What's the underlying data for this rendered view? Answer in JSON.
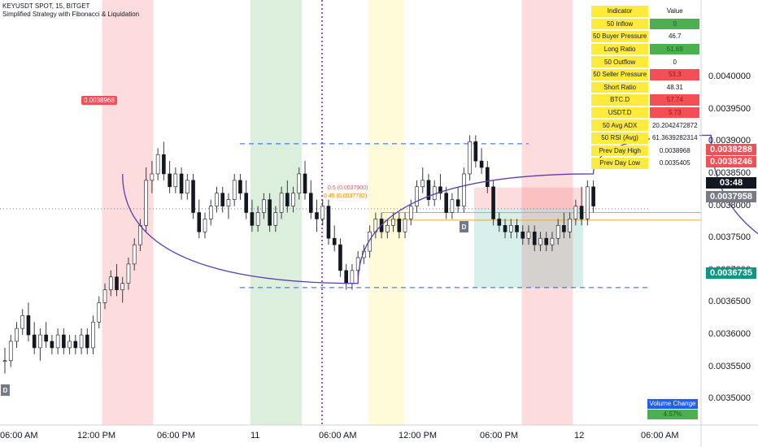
{
  "header": {
    "line1": "KEYUSDT SPOT, 15, BITGET",
    "line2": "Simplified Strategy with Fibonacci & Liquidation"
  },
  "table": {
    "header": [
      "Indicator",
      "Value"
    ],
    "rows": [
      {
        "label": "50 Inflow",
        "value": "0",
        "tone": "pos"
      },
      {
        "label": "50 Buyer Pressure",
        "value": "46.7",
        "tone": ""
      },
      {
        "label": "Long Ratio",
        "value": "51.69",
        "tone": "pos"
      },
      {
        "label": "50 Outflow",
        "value": "0",
        "tone": ""
      },
      {
        "label": "50 Seller Pressure",
        "value": "53.3",
        "tone": "neg"
      },
      {
        "label": "Short Ratio",
        "value": "48.31",
        "tone": ""
      },
      {
        "label": "BTC.D",
        "value": "57.74",
        "tone": "neg"
      },
      {
        "label": "USDT.D",
        "value": "5.73",
        "tone": "neg"
      },
      {
        "label": "50 Avg ADX",
        "value": "20.2042472872",
        "tone": ""
      },
      {
        "label": "50 RSI (Avg)",
        "value": "61.3639282314",
        "tone": ""
      },
      {
        "label": "Prev Day High",
        "value": "0.0038968",
        "tone": ""
      },
      {
        "label": "Prev Day Low",
        "value": "0.0035405",
        "tone": ""
      }
    ]
  },
  "volume_change": {
    "label": "Volume Change",
    "value": "4.57%"
  },
  "scale_tags": [
    {
      "text": "0.0038288",
      "price": 0.0038288,
      "color": "#f44f56"
    },
    {
      "text": "0.0038246",
      "price": 0.0038246,
      "color": "#f44f56"
    },
    {
      "text": "03:48",
      "price": 0.00379,
      "color": "#131722"
    },
    {
      "text": "0.0037958",
      "price": 0.0037958,
      "color": "#787b86"
    },
    {
      "text": "0.0036735",
      "price": 0.0036735,
      "color": "#089981"
    }
  ],
  "badges": {
    "high_label": "0.0038968",
    "fib_05": "0.5 (0.0037900)",
    "fib_045": "0.45 (0.0037782)",
    "d_marker": "D"
  },
  "chart_data": {
    "type": "candlestick",
    "symbol": "KEYUSDT SPOT",
    "interval": "15",
    "exchange": "BITGET",
    "y_axis": {
      "range": [
        0.00346,
        0.00412
      ],
      "ticks": [
        0.0035,
        0.00355,
        0.0036,
        0.00365,
        0.0037,
        0.00375,
        0.0038,
        0.00385,
        0.0039,
        0.00395,
        0.004
      ],
      "tick_labels": [
        "0.0035000",
        "0.0035500",
        "0.0036000",
        "0.0036500",
        "0.0037000",
        "0.0037500",
        "0.0038000",
        "0.0038500",
        "0.0039000",
        "0.0039500",
        "0.0040000"
      ]
    },
    "x_axis": {
      "labels": [
        "06:00 AM",
        "12:00 PM",
        "06:00 PM",
        "11",
        "06:00 AM",
        "12:00 PM",
        "06:00 PM",
        "12",
        "06:00 AM"
      ],
      "label_bar": [
        0,
        24,
        48,
        72,
        96,
        120,
        144,
        168,
        192
      ]
    },
    "bars_in_view": 137,
    "candles_ohlc": [
      [
        0.00356,
        0.00358,
        0.00354,
        0.00356
      ],
      [
        0.00356,
        0.0036,
        0.00355,
        0.00359
      ],
      [
        0.00359,
        0.00362,
        0.00358,
        0.00361
      ],
      [
        0.00361,
        0.00364,
        0.0036,
        0.00363
      ],
      [
        0.00363,
        0.00365,
        0.00359,
        0.0036
      ],
      [
        0.0036,
        0.00362,
        0.00357,
        0.00358
      ],
      [
        0.00358,
        0.00361,
        0.00356,
        0.0036
      ],
      [
        0.0036,
        0.00362,
        0.00358,
        0.00359
      ],
      [
        0.00359,
        0.0036,
        0.00357,
        0.00358
      ],
      [
        0.00358,
        0.00361,
        0.00357,
        0.0036
      ],
      [
        0.0036,
        0.00361,
        0.00357,
        0.00358
      ],
      [
        0.00358,
        0.0036,
        0.00357,
        0.00359
      ],
      [
        0.00359,
        0.0036,
        0.00357,
        0.00358
      ],
      [
        0.00358,
        0.00361,
        0.00357,
        0.0036
      ],
      [
        0.0036,
        0.00361,
        0.00357,
        0.00358
      ],
      [
        0.00358,
        0.00363,
        0.00357,
        0.00362
      ],
      [
        0.00362,
        0.00366,
        0.00361,
        0.00365
      ],
      [
        0.00365,
        0.00368,
        0.00364,
        0.00367
      ],
      [
        0.00367,
        0.0037,
        0.00366,
        0.00369
      ],
      [
        0.00369,
        0.00371,
        0.00366,
        0.00367
      ],
      [
        0.00367,
        0.00369,
        0.00365,
        0.00368
      ],
      [
        0.00368,
        0.00372,
        0.00367,
        0.00371
      ],
      [
        0.00371,
        0.00375,
        0.0037,
        0.00374
      ],
      [
        0.00374,
        0.00378,
        0.00373,
        0.00377
      ],
      [
        0.00377,
        0.00386,
        0.00376,
        0.00384
      ],
      [
        0.00384,
        0.00387,
        0.00382,
        0.00385
      ],
      [
        0.00385,
        0.00389,
        0.00384,
        0.00388
      ],
      [
        0.00388,
        0.0039,
        0.00384,
        0.00385
      ],
      [
        0.00385,
        0.00387,
        0.00382,
        0.00383
      ],
      [
        0.00383,
        0.00386,
        0.00382,
        0.00385
      ],
      [
        0.00385,
        0.00386,
        0.00381,
        0.00382
      ],
      [
        0.00382,
        0.00385,
        0.00381,
        0.00384
      ],
      [
        0.00384,
        0.00385,
        0.00378,
        0.00379
      ],
      [
        0.00379,
        0.00381,
        0.00375,
        0.00376
      ],
      [
        0.00376,
        0.00379,
        0.00375,
        0.00378
      ],
      [
        0.00378,
        0.00381,
        0.00377,
        0.0038
      ],
      [
        0.0038,
        0.00383,
        0.00379,
        0.00382
      ],
      [
        0.00382,
        0.00383,
        0.00379,
        0.0038
      ],
      [
        0.0038,
        0.00382,
        0.00378,
        0.00381
      ],
      [
        0.00381,
        0.00385,
        0.0038,
        0.00384
      ],
      [
        0.00384,
        0.00385,
        0.00381,
        0.00382
      ],
      [
        0.00382,
        0.00384,
        0.00378,
        0.00379
      ],
      [
        0.00379,
        0.00381,
        0.00376,
        0.00377
      ],
      [
        0.00377,
        0.0038,
        0.00376,
        0.00379
      ],
      [
        0.00379,
        0.00382,
        0.00378,
        0.00381
      ],
      [
        0.00381,
        0.00382,
        0.00376,
        0.00377
      ],
      [
        0.00377,
        0.0038,
        0.00376,
        0.00379
      ],
      [
        0.00379,
        0.00383,
        0.00378,
        0.00382
      ],
      [
        0.00382,
        0.00384,
        0.00379,
        0.0038
      ],
      [
        0.0038,
        0.00383,
        0.00379,
        0.00382
      ],
      [
        0.00382,
        0.00386,
        0.00381,
        0.00385
      ],
      [
        0.00385,
        0.00387,
        0.00381,
        0.00382
      ],
      [
        0.00382,
        0.00384,
        0.00378,
        0.00379
      ],
      [
        0.00379,
        0.00381,
        0.00376,
        0.00378
      ],
      [
        0.00378,
        0.00381,
        0.00377,
        0.0038
      ],
      [
        0.0038,
        0.00381,
        0.00374,
        0.00375
      ],
      [
        0.00375,
        0.00377,
        0.00373,
        0.00374
      ],
      [
        0.00374,
        0.00375,
        0.00369,
        0.0037
      ],
      [
        0.0037,
        0.00371,
        0.00367,
        0.00368
      ],
      [
        0.00368,
        0.00371,
        0.00367,
        0.0037
      ],
      [
        0.0037,
        0.00373,
        0.00369,
        0.00372
      ],
      [
        0.00372,
        0.00374,
        0.00371,
        0.00373
      ],
      [
        0.00373,
        0.00377,
        0.00372,
        0.00376
      ],
      [
        0.00376,
        0.00379,
        0.00375,
        0.00378
      ],
      [
        0.00378,
        0.00379,
        0.00375,
        0.00376
      ],
      [
        0.00376,
        0.00378,
        0.00375,
        0.00377
      ],
      [
        0.00377,
        0.00379,
        0.00376,
        0.00378
      ],
      [
        0.00378,
        0.00379,
        0.00375,
        0.00376
      ],
      [
        0.00376,
        0.00379,
        0.00375,
        0.00378
      ],
      [
        0.00378,
        0.00381,
        0.00377,
        0.0038
      ],
      [
        0.0038,
        0.00384,
        0.00379,
        0.00383
      ],
      [
        0.00383,
        0.00386,
        0.00382,
        0.00384
      ],
      [
        0.00384,
        0.00385,
        0.0038,
        0.00381
      ],
      [
        0.00381,
        0.00384,
        0.0038,
        0.00383
      ],
      [
        0.00383,
        0.00385,
        0.00381,
        0.00382
      ],
      [
        0.00382,
        0.00383,
        0.00378,
        0.00379
      ],
      [
        0.00379,
        0.00382,
        0.00378,
        0.00381
      ],
      [
        0.00381,
        0.00383,
        0.00379,
        0.0038
      ],
      [
        0.0038,
        0.00386,
        0.00379,
        0.00385
      ],
      [
        0.00385,
        0.00391,
        0.00384,
        0.0039
      ],
      [
        0.0039,
        0.00391,
        0.00386,
        0.00387
      ],
      [
        0.00387,
        0.00389,
        0.00385,
        0.00386
      ],
      [
        0.00386,
        0.00387,
        0.00382,
        0.00383
      ],
      [
        0.00383,
        0.00384,
        0.00377,
        0.00378
      ],
      [
        0.00378,
        0.00379,
        0.00376,
        0.00377
      ],
      [
        0.00377,
        0.00378,
        0.00375,
        0.00376
      ],
      [
        0.00376,
        0.00378,
        0.00375,
        0.00377
      ],
      [
        0.00377,
        0.00378,
        0.00375,
        0.00376
      ],
      [
        0.00376,
        0.00377,
        0.00374,
        0.00375
      ],
      [
        0.00375,
        0.00377,
        0.00374,
        0.00376
      ],
      [
        0.00376,
        0.00377,
        0.00373,
        0.00374
      ],
      [
        0.00374,
        0.00376,
        0.00373,
        0.00375
      ],
      [
        0.00375,
        0.00376,
        0.00373,
        0.00374
      ],
      [
        0.00374,
        0.00376,
        0.00373,
        0.00375
      ],
      [
        0.00375,
        0.00378,
        0.00374,
        0.00377
      ],
      [
        0.00377,
        0.00379,
        0.00375,
        0.00376
      ],
      [
        0.00376,
        0.00379,
        0.00375,
        0.00378
      ],
      [
        0.00378,
        0.00381,
        0.00377,
        0.0038
      ],
      [
        0.0038,
        0.00383,
        0.00377,
        0.00378
      ],
      [
        0.00378,
        0.00384,
        0.00377,
        0.00383
      ],
      [
        0.00383,
        0.00384,
        0.00379,
        0.0038
      ]
    ],
    "curves": [
      {
        "name": "",
        "color": "#5c3db7",
        "shape": "arc",
        "points": [
          [
            20,
            0.00385
          ],
          [
            60,
            0.00368
          ],
          [
            100,
            0.00385
          ],
          [
            120,
            0.00391
          ],
          [
            165,
            0.00368
          ]
        ]
      }
    ],
    "shaded_sessions": [
      {
        "from_bar": 19,
        "to_bar": 29,
        "color": "#f44f56"
      },
      {
        "from_bar": 48,
        "to_bar": 58,
        "color": "#4caf50"
      },
      {
        "from_bar": 71,
        "to_bar": 78,
        "color": "#ffeb3b"
      },
      {
        "from_bar": 101,
        "to_bar": 111,
        "color": "#f44f56"
      }
    ],
    "levels": [
      {
        "price": 0.0038968,
        "style": "dashed",
        "color": "#1e5eff"
      },
      {
        "price": 0.0036735,
        "style": "dashed",
        "color": "#1e5eff"
      },
      {
        "price": 0.00379,
        "style": "solid",
        "color": "#f5a623"
      },
      {
        "price": 0.0037782,
        "style": "solid",
        "color": "#f5a623"
      },
      {
        "price": 0.0037958,
        "style": "dotted",
        "color": "#787b86"
      }
    ],
    "position": {
      "entry": 0.0037958,
      "stop": 0.0038288,
      "target": 0.0036735
    },
    "markers": [
      {
        "bar": 32,
        "type": "D"
      },
      {
        "bar": 117,
        "type": "D"
      }
    ]
  }
}
